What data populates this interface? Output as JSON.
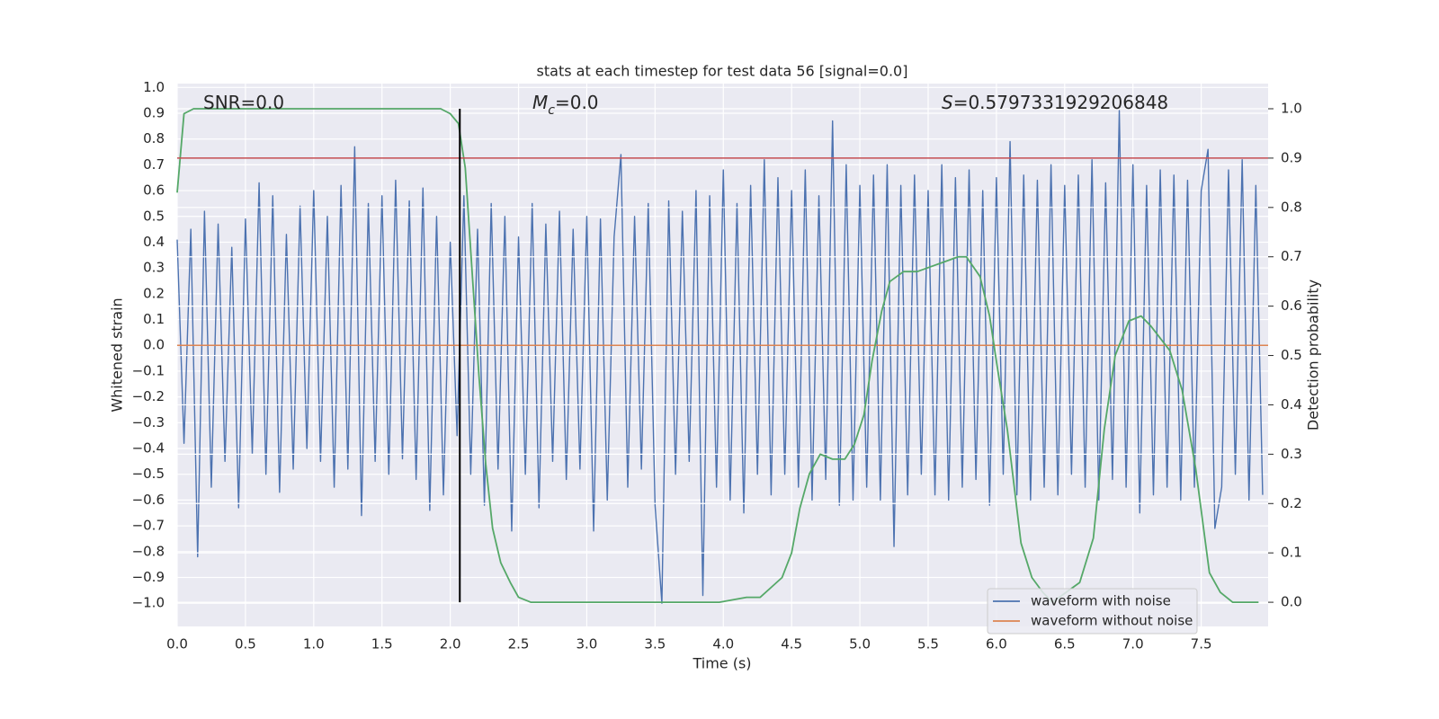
{
  "chart_data": {
    "type": "line",
    "title": "stats at each timestep for test data 56 [signal=0.0]",
    "xlabel": "Time (s)",
    "ylabel": "Whitened strain",
    "y2label": "Detection probability",
    "annotations": [
      {
        "parts": [
          "SNR=0.0"
        ]
      },
      {
        "parts": [
          "M",
          "c",
          "=0.0"
        ]
      },
      {
        "parts": [
          "S",
          "=0.5797331929206848"
        ]
      }
    ],
    "xlim": [
      0,
      7.99
    ],
    "ylim": [
      -1.09,
      1.015
    ],
    "y2lim": [
      -0.049,
      1.051
    ],
    "xticks": [
      {
        "value": 0,
        "label": "0.0"
      },
      {
        "value": 0.5,
        "label": "0.5"
      },
      {
        "value": 1,
        "label": "1.0"
      },
      {
        "value": 1.5,
        "label": "1.5"
      },
      {
        "value": 2,
        "label": "2.0"
      },
      {
        "value": 2.5,
        "label": "2.5"
      },
      {
        "value": 3,
        "label": "3.0"
      },
      {
        "value": 3.5,
        "label": "3.5"
      },
      {
        "value": 4,
        "label": "4.0"
      },
      {
        "value": 4.5,
        "label": "4.5"
      },
      {
        "value": 5,
        "label": "5.0"
      },
      {
        "value": 5.5,
        "label": "5.5"
      },
      {
        "value": 6,
        "label": "6.0"
      },
      {
        "value": 6.5,
        "label": "6.5"
      },
      {
        "value": 7,
        "label": "7.0"
      },
      {
        "value": 7.5,
        "label": "7.5"
      }
    ],
    "yticks": [
      {
        "value": -1,
        "label": "−1.0"
      },
      {
        "value": -0.9,
        "label": "−0.9"
      },
      {
        "value": -0.8,
        "label": "−0.8"
      },
      {
        "value": -0.7,
        "label": "−0.7"
      },
      {
        "value": -0.6,
        "label": "−0.6"
      },
      {
        "value": -0.5,
        "label": "−0.5"
      },
      {
        "value": -0.4,
        "label": "−0.4"
      },
      {
        "value": -0.3,
        "label": "−0.3"
      },
      {
        "value": -0.2,
        "label": "−0.2"
      },
      {
        "value": -0.1,
        "label": "−0.1"
      },
      {
        "value": 0,
        "label": "0.0"
      },
      {
        "value": 0.1,
        "label": "0.1"
      },
      {
        "value": 0.2,
        "label": "0.2"
      },
      {
        "value": 0.3,
        "label": "0.3"
      },
      {
        "value": 0.4,
        "label": "0.4"
      },
      {
        "value": 0.5,
        "label": "0.5"
      },
      {
        "value": 0.6,
        "label": "0.6"
      },
      {
        "value": 0.7,
        "label": "0.7"
      },
      {
        "value": 0.8,
        "label": "0.8"
      },
      {
        "value": 0.9,
        "label": "0.9"
      },
      {
        "value": 1,
        "label": "1.0"
      }
    ],
    "y2ticks": [
      {
        "value": 0,
        "label": "0.0"
      },
      {
        "value": 0.1,
        "label": "0.1"
      },
      {
        "value": 0.2,
        "label": "0.2"
      },
      {
        "value": 0.3,
        "label": "0.3"
      },
      {
        "value": 0.4,
        "label": "0.4"
      },
      {
        "value": 0.5,
        "label": "0.5"
      },
      {
        "value": 0.6,
        "label": "0.6"
      },
      {
        "value": 0.7,
        "label": "0.7"
      },
      {
        "value": 0.8,
        "label": "0.8"
      },
      {
        "value": 0.9,
        "label": "0.9"
      },
      {
        "value": 1,
        "label": "1.0"
      }
    ],
    "grid": true,
    "legend": "lower right",
    "series": [
      {
        "name": "waveform with noise",
        "color": "#4c72b0",
        "legend": true,
        "x": [
          0,
          0.05,
          0.1,
          0.15,
          0.2,
          0.25,
          0.3,
          0.35,
          0.4,
          0.45,
          0.5,
          0.55,
          0.6,
          0.65,
          0.7,
          0.75,
          0.8,
          0.85,
          0.9,
          0.95,
          1,
          1.05,
          1.1,
          1.15,
          1.2,
          1.25,
          1.3,
          1.35,
          1.4,
          1.45,
          1.5,
          1.55,
          1.6,
          1.65,
          1.7,
          1.75,
          1.8,
          1.85,
          1.9,
          1.95,
          2,
          2.05,
          2.1,
          2.15,
          2.2,
          2.25,
          2.3,
          2.35,
          2.4,
          2.45,
          2.5,
          2.55,
          2.6,
          2.65,
          2.7,
          2.75,
          2.8,
          2.85,
          2.9,
          2.95,
          3,
          3.05,
          3.1,
          3.15,
          3.2,
          3.25,
          3.3,
          3.35,
          3.4,
          3.45,
          3.5,
          3.55,
          3.6,
          3.65,
          3.7,
          3.75,
          3.8,
          3.85,
          3.9,
          3.95,
          4,
          4.05,
          4.1,
          4.15,
          4.2,
          4.25,
          4.3,
          4.35,
          4.4,
          4.45,
          4.5,
          4.55,
          4.6,
          4.65,
          4.7,
          4.75,
          4.8,
          4.85,
          4.9,
          4.95,
          5,
          5.05,
          5.1,
          5.15,
          5.2,
          5.25,
          5.3,
          5.35,
          5.4,
          5.45,
          5.5,
          5.55,
          5.6,
          5.65,
          5.7,
          5.75,
          5.8,
          5.85,
          5.9,
          5.95,
          6,
          6.05,
          6.1,
          6.15,
          6.2,
          6.25,
          6.3,
          6.35,
          6.4,
          6.45,
          6.5,
          6.55,
          6.6,
          6.65,
          6.7,
          6.75,
          6.8,
          6.85,
          6.9,
          6.95,
          7,
          7.05,
          7.1,
          7.15,
          7.2,
          7.25,
          7.3,
          7.35,
          7.4,
          7.45,
          7.5,
          7.55,
          7.6,
          7.65,
          7.7,
          7.75,
          7.8,
          7.85,
          7.9,
          7.95
        ],
        "values": [
          0.41,
          -0.38,
          0.45,
          -0.82,
          0.52,
          -0.55,
          0.47,
          -0.45,
          0.38,
          -0.63,
          0.49,
          -0.42,
          0.63,
          -0.5,
          0.58,
          -0.57,
          0.43,
          -0.48,
          0.54,
          -0.4,
          0.6,
          -0.45,
          0.5,
          -0.55,
          0.62,
          -0.48,
          0.77,
          -0.66,
          0.55,
          -0.45,
          0.58,
          -0.5,
          0.64,
          -0.44,
          0.56,
          -0.52,
          0.61,
          -0.64,
          0.5,
          -0.58,
          0.4,
          -0.35,
          0.58,
          -0.5,
          0.45,
          -0.62,
          0.55,
          -0.48,
          0.5,
          -0.72,
          0.42,
          -0.5,
          0.55,
          -0.63,
          0.47,
          -0.45,
          0.52,
          -0.52,
          0.45,
          -0.48,
          0.5,
          -0.72,
          0.49,
          -0.6,
          0.42,
          0.74,
          -0.55,
          0.5,
          -0.48,
          0.55,
          -0.62,
          -1.0,
          0.56,
          -0.5,
          0.52,
          -0.45,
          0.6,
          -0.97,
          0.58,
          -0.55,
          0.68,
          -0.6,
          0.55,
          -0.65,
          0.62,
          -0.5,
          0.72,
          -0.58,
          0.65,
          -0.5,
          0.6,
          -0.55,
          0.68,
          -0.6,
          0.58,
          -0.52,
          0.87,
          -0.62,
          0.7,
          -0.6,
          0.62,
          -0.55,
          0.66,
          -0.6,
          0.7,
          -0.78,
          0.62,
          -0.58,
          0.66,
          -0.5,
          0.6,
          -0.58,
          0.7,
          -0.6,
          0.65,
          -0.55,
          0.68,
          -0.52,
          0.6,
          -0.62,
          0.65,
          -0.5,
          0.79,
          -0.58,
          0.66,
          -0.6,
          0.64,
          -0.55,
          0.7,
          -0.58,
          0.62,
          -0.5,
          0.66,
          -0.55,
          0.72,
          -0.6,
          0.63,
          -0.52,
          0.91,
          -0.55,
          0.7,
          -0.65,
          0.62,
          -0.58,
          0.68,
          -0.55,
          0.66,
          -0.6,
          0.64,
          -0.55,
          0.6,
          0.76,
          -0.71,
          -0.55,
          0.68,
          -0.5,
          0.72,
          -0.6,
          0.62,
          -0.58
        ]
      },
      {
        "name": "waveform without noise",
        "color": "#dd8452",
        "legend": true,
        "x": [
          0,
          7.99
        ],
        "values": [
          0,
          0
        ]
      },
      {
        "name": "detection probability",
        "color": "#55a868",
        "axis": "y2",
        "legend": false,
        "x": [
          0,
          0.05,
          0.12,
          1.93,
          2.0,
          2.06,
          2.11,
          2.16,
          2.21,
          2.26,
          2.31,
          2.37,
          2.44,
          2.5,
          2.59,
          2.72,
          3.97,
          4.17,
          4.27,
          4.35,
          4.43,
          4.5,
          4.56,
          4.63,
          4.71,
          4.8,
          4.89,
          4.96,
          5.03,
          5.09,
          5.16,
          5.22,
          5.32,
          5.42,
          5.52,
          5.62,
          5.72,
          5.78,
          5.88,
          5.95,
          6.01,
          6.08,
          6.18,
          6.26,
          6.34,
          6.41,
          6.61,
          6.71,
          6.79,
          6.87,
          6.97,
          7.06,
          7.13,
          7.27,
          7.36,
          7.46,
          7.56,
          7.64,
          7.73,
          7.92
        ],
        "values": [
          0.83,
          0.99,
          1.0,
          1.0,
          0.99,
          0.97,
          0.88,
          0.67,
          0.46,
          0.28,
          0.15,
          0.08,
          0.04,
          0.01,
          0.0,
          0,
          0,
          0.01,
          0.01,
          0.03,
          0.05,
          0.1,
          0.19,
          0.26,
          0.3,
          0.29,
          0.29,
          0.32,
          0.38,
          0.49,
          0.59,
          0.65,
          0.67,
          0.67,
          0.68,
          0.69,
          0.7,
          0.7,
          0.66,
          0.58,
          0.47,
          0.35,
          0.12,
          0.05,
          0.02,
          0,
          0.04,
          0.13,
          0.35,
          0.5,
          0.57,
          0.58,
          0.56,
          0.51,
          0.43,
          0.27,
          0.06,
          0.02,
          0,
          0
        ]
      }
    ],
    "hlines": [
      {
        "value": 0.9,
        "axis": "y2",
        "color": "#c44e52"
      }
    ],
    "vlines": [
      {
        "value": 2.07,
        "from": 0,
        "to": 1,
        "axis": "y2",
        "color": "#000000"
      }
    ]
  }
}
